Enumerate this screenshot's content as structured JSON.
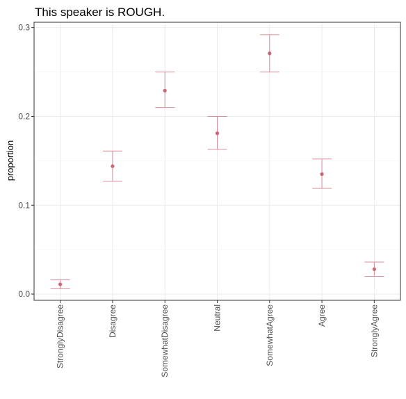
{
  "chart_data": {
    "type": "scatter",
    "title": "This speaker is ROUGH.",
    "xlabel": "",
    "ylabel": "proportion",
    "categories": [
      "StronglyDisagree",
      "Disagree",
      "SomewhatDisagree",
      "Neutral",
      "SomewhatAgree",
      "Agree",
      "StronglyAgree"
    ],
    "values": [
      0.011,
      0.144,
      0.229,
      0.181,
      0.271,
      0.135,
      0.028
    ],
    "error_low": [
      0.006,
      0.127,
      0.21,
      0.163,
      0.25,
      0.119,
      0.02
    ],
    "error_high": [
      0.016,
      0.161,
      0.25,
      0.2,
      0.292,
      0.152,
      0.036
    ],
    "yticks": [
      0.0,
      0.1,
      0.2,
      0.3
    ],
    "ytick_labels": [
      "0.0",
      "0.1",
      "0.2",
      "0.3"
    ],
    "ylim": [
      -0.007,
      0.306
    ],
    "grid": true,
    "legend": "none",
    "colors": {
      "point": "#cc6677",
      "errorbar": "#d98c98",
      "grid_major": "#ebebeb",
      "grid_minor": "#f5f5f5",
      "panel_border": "#333333",
      "tick_text": "#4d4d4d"
    }
  }
}
